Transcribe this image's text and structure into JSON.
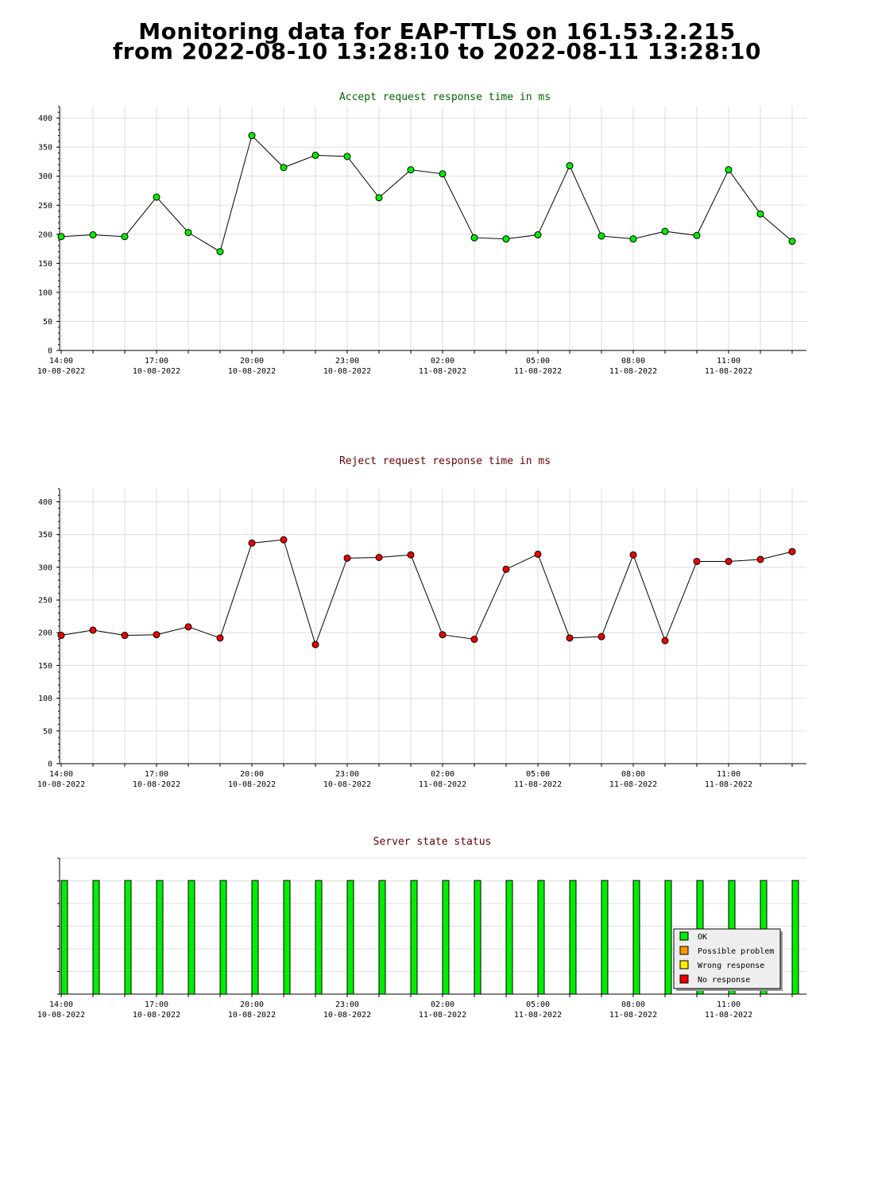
{
  "header": {
    "title_line1": "Monitoring data for EAP-TTLS on 161.53.2.215",
    "title_line2": "from 2022-08-10 13:28:10 to 2022-08-11 13:28:10"
  },
  "colors": {
    "accept_title": "#006600",
    "reject_title": "#660000",
    "status_title": "#660000",
    "accept_marker": "#00ee00",
    "reject_marker": "#ee0000",
    "ok": "#00ee00",
    "possible_problem": "#ff9900",
    "wrong_response": "#ffee00",
    "no_response": "#ee0000"
  },
  "chart_data": [
    {
      "type": "line",
      "title": "Accept request response time in ms",
      "x_ticks": [
        {
          "time": "14:00",
          "date": "10-08-2022"
        },
        {
          "time": "17:00",
          "date": "10-08-2022"
        },
        {
          "time": "20:00",
          "date": "10-08-2022"
        },
        {
          "time": "23:00",
          "date": "10-08-2022"
        },
        {
          "time": "02:00",
          "date": "11-08-2022"
        },
        {
          "time": "05:00",
          "date": "11-08-2022"
        },
        {
          "time": "08:00",
          "date": "11-08-2022"
        },
        {
          "time": "11:00",
          "date": "11-08-2022"
        }
      ],
      "x": [
        "2022-08-10 14:00",
        "2022-08-10 15:00",
        "2022-08-10 16:00",
        "2022-08-10 17:00",
        "2022-08-10 18:00",
        "2022-08-10 19:00",
        "2022-08-10 20:00",
        "2022-08-10 21:00",
        "2022-08-10 22:00",
        "2022-08-10 23:00",
        "2022-08-11 00:00",
        "2022-08-11 01:00",
        "2022-08-11 02:00",
        "2022-08-11 03:00",
        "2022-08-11 04:00",
        "2022-08-11 05:00",
        "2022-08-11 06:00",
        "2022-08-11 07:00",
        "2022-08-11 08:00",
        "2022-08-11 09:00",
        "2022-08-11 10:00",
        "2022-08-11 11:00",
        "2022-08-11 12:00",
        "2022-08-11 13:00"
      ],
      "values": [
        196,
        199,
        196,
        264,
        203,
        170,
        370,
        315,
        336,
        334,
        263,
        311,
        304,
        194,
        192,
        199,
        318,
        197,
        192,
        205,
        198,
        311,
        235,
        188
      ],
      "ylim": [
        0,
        420
      ],
      "y_ticks": [
        0,
        50,
        100,
        150,
        200,
        250,
        300,
        350,
        400
      ],
      "grid": true
    },
    {
      "type": "line",
      "title": "Reject request response time in ms",
      "x_ticks": [
        {
          "time": "14:00",
          "date": "10-08-2022"
        },
        {
          "time": "17:00",
          "date": "10-08-2022"
        },
        {
          "time": "20:00",
          "date": "10-08-2022"
        },
        {
          "time": "23:00",
          "date": "10-08-2022"
        },
        {
          "time": "02:00",
          "date": "11-08-2022"
        },
        {
          "time": "05:00",
          "date": "11-08-2022"
        },
        {
          "time": "08:00",
          "date": "11-08-2022"
        },
        {
          "time": "11:00",
          "date": "11-08-2022"
        }
      ],
      "x": [
        "2022-08-10 14:00",
        "2022-08-10 15:00",
        "2022-08-10 16:00",
        "2022-08-10 17:00",
        "2022-08-10 18:00",
        "2022-08-10 19:00",
        "2022-08-10 20:00",
        "2022-08-10 21:00",
        "2022-08-10 22:00",
        "2022-08-10 23:00",
        "2022-08-11 00:00",
        "2022-08-11 01:00",
        "2022-08-11 02:00",
        "2022-08-11 03:00",
        "2022-08-11 04:00",
        "2022-08-11 05:00",
        "2022-08-11 06:00",
        "2022-08-11 07:00",
        "2022-08-11 08:00",
        "2022-08-11 09:00",
        "2022-08-11 10:00",
        "2022-08-11 11:00",
        "2022-08-11 12:00",
        "2022-08-11 13:00"
      ],
      "values": [
        196,
        204,
        196,
        197,
        209,
        192,
        337,
        342,
        182,
        314,
        315,
        319,
        197,
        190,
        297,
        320,
        192,
        194,
        319,
        188,
        309,
        309,
        312,
        324
      ],
      "ylim": [
        0,
        420
      ],
      "y_ticks": [
        0,
        50,
        100,
        150,
        200,
        250,
        300,
        350,
        400
      ],
      "grid": true
    },
    {
      "type": "bar",
      "title": "Server state status",
      "x_ticks": [
        {
          "time": "14:00",
          "date": "10-08-2022"
        },
        {
          "time": "17:00",
          "date": "10-08-2022"
        },
        {
          "time": "20:00",
          "date": "10-08-2022"
        },
        {
          "time": "23:00",
          "date": "10-08-2022"
        },
        {
          "time": "02:00",
          "date": "11-08-2022"
        },
        {
          "time": "05:00",
          "date": "11-08-2022"
        },
        {
          "time": "08:00",
          "date": "11-08-2022"
        },
        {
          "time": "11:00",
          "date": "11-08-2022"
        }
      ],
      "x": [
        "2022-08-10 14:00",
        "2022-08-10 15:00",
        "2022-08-10 16:00",
        "2022-08-10 17:00",
        "2022-08-10 18:00",
        "2022-08-10 19:00",
        "2022-08-10 20:00",
        "2022-08-10 21:00",
        "2022-08-10 22:00",
        "2022-08-10 23:00",
        "2022-08-11 00:00",
        "2022-08-11 01:00",
        "2022-08-11 02:00",
        "2022-08-11 03:00",
        "2022-08-11 04:00",
        "2022-08-11 05:00",
        "2022-08-11 06:00",
        "2022-08-11 07:00",
        "2022-08-11 08:00",
        "2022-08-11 09:00",
        "2022-08-11 10:00",
        "2022-08-11 11:00",
        "2022-08-11 12:00",
        "2022-08-11 13:00"
      ],
      "states": [
        "OK",
        "OK",
        "OK",
        "OK",
        "OK",
        "OK",
        "OK",
        "OK",
        "OK",
        "OK",
        "OK",
        "OK",
        "OK",
        "OK",
        "OK",
        "OK",
        "OK",
        "OK",
        "OK",
        "OK",
        "OK",
        "OK",
        "OK",
        "OK"
      ],
      "legend": [
        "OK",
        "Possible problem",
        "Wrong response",
        "No response"
      ],
      "legend_position": "bottom-right",
      "grid": true
    }
  ]
}
